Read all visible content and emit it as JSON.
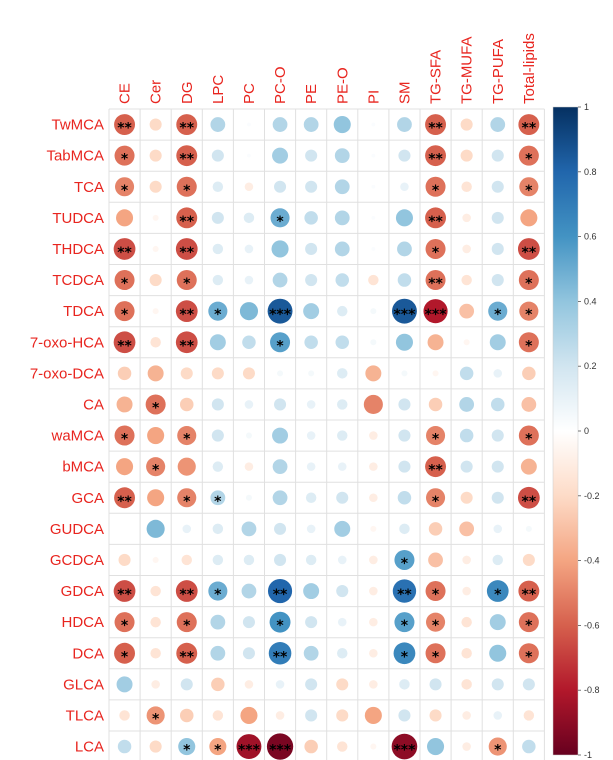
{
  "colors": {
    "label": "#e8251f",
    "grid": "#e0e0e0",
    "star": "#000000",
    "colorbar_stops": [
      "#67001f",
      "#b2182b",
      "#d6604d",
      "#f4a582",
      "#fddbc7",
      "#ffffff",
      "#d1e5f0",
      "#92c5de",
      "#4393c3",
      "#2166ac",
      "#053061"
    ]
  },
  "chart_data": {
    "type": "heatmap",
    "columns": [
      "CE",
      "Cer",
      "DG",
      "LPC",
      "PC",
      "PC-O",
      "PE",
      "PE-O",
      "PI",
      "SM",
      "TG-SFA",
      "TG-MUFA",
      "TG-PUFA",
      "Total-lipids"
    ],
    "rows": [
      "TwMCA",
      "TabMCA",
      "TCA",
      "TUDCA",
      "THDCA",
      "TCDCA",
      "TDCA",
      "7-oxo-HCA",
      "7-oxo-DCA",
      "CA",
      "waMCA",
      "bMCA",
      "GCA",
      "GUDCA",
      "GCDCA",
      "GDCA",
      "HDCA",
      "DCA",
      "GLCA",
      "TLCA",
      "LCA"
    ],
    "values": [
      [
        -0.6,
        -0.2,
        -0.6,
        0.3,
        0.02,
        0.3,
        0.3,
        0.4,
        0.02,
        0.3,
        -0.6,
        -0.2,
        0.3,
        -0.6
      ],
      [
        -0.55,
        -0.2,
        -0.6,
        0.2,
        0.02,
        0.35,
        0.2,
        0.3,
        0.02,
        0.2,
        -0.6,
        -0.2,
        0.2,
        -0.55
      ],
      [
        -0.5,
        -0.2,
        -0.55,
        0.15,
        -0.1,
        0.2,
        0.2,
        0.3,
        0.02,
        0.1,
        -0.55,
        -0.15,
        0.2,
        -0.5
      ],
      [
        -0.4,
        -0.05,
        -0.6,
        0.2,
        0.15,
        0.5,
        0.25,
        0.3,
        0.02,
        0.4,
        -0.6,
        -0.1,
        0.2,
        -0.4
      ],
      [
        -0.65,
        -0.05,
        -0.65,
        0.15,
        0.1,
        0.4,
        0.2,
        0.3,
        0.02,
        0.3,
        -0.55,
        -0.1,
        0.2,
        -0.65
      ],
      [
        -0.55,
        -0.2,
        -0.55,
        0.15,
        0.1,
        0.3,
        0.2,
        0.25,
        -0.15,
        0.25,
        -0.55,
        -0.15,
        0.2,
        -0.55
      ],
      [
        -0.55,
        -0.05,
        -0.65,
        0.5,
        0.45,
        0.85,
        0.35,
        0.15,
        0.05,
        0.85,
        -0.8,
        -0.3,
        0.5,
        -0.5
      ],
      [
        -0.65,
        -0.15,
        -0.65,
        0.35,
        0.25,
        0.55,
        0.25,
        0.25,
        0.05,
        0.4,
        -0.35,
        -0.05,
        0.35,
        -0.55
      ],
      [
        -0.25,
        -0.35,
        -0.2,
        -0.2,
        -0.2,
        0.05,
        0.05,
        0.15,
        -0.35,
        0.05,
        -0.05,
        0.25,
        0.1,
        -0.25
      ],
      [
        -0.35,
        -0.55,
        -0.25,
        0.2,
        0.1,
        0.2,
        0.1,
        0.15,
        -0.5,
        0.2,
        -0.25,
        0.3,
        0.25,
        -0.3
      ],
      [
        -0.55,
        -0.4,
        -0.5,
        0.2,
        0.05,
        0.35,
        0.1,
        0.15,
        -0.1,
        0.2,
        -0.5,
        0.25,
        0.2,
        -0.55
      ],
      [
        -0.4,
        -0.5,
        -0.45,
        0.15,
        -0.1,
        0.3,
        0.1,
        0.1,
        -0.1,
        0.2,
        -0.6,
        0.2,
        0.2,
        -0.35
      ],
      [
        -0.6,
        -0.4,
        -0.5,
        0.3,
        0.05,
        0.3,
        0.15,
        0.2,
        -0.1,
        0.25,
        -0.5,
        -0.2,
        0.2,
        -0.65
      ],
      [
        0.0,
        0.45,
        0.1,
        0.15,
        0.3,
        0.2,
        0.1,
        0.35,
        -0.05,
        0.15,
        -0.25,
        -0.3,
        0.1,
        0.05
      ],
      [
        -0.2,
        -0.05,
        -0.15,
        0.15,
        0.15,
        0.2,
        0.15,
        0.1,
        -0.1,
        0.55,
        -0.3,
        -0.1,
        0.15,
        -0.2
      ],
      [
        -0.65,
        -0.15,
        -0.65,
        0.5,
        0.3,
        0.8,
        0.35,
        0.2,
        -0.1,
        0.75,
        -0.55,
        -0.1,
        0.65,
        -0.6
      ],
      [
        -0.55,
        -0.15,
        -0.55,
        0.3,
        0.2,
        0.6,
        0.2,
        0.1,
        -0.1,
        0.55,
        -0.5,
        -0.15,
        0.35,
        -0.55
      ],
      [
        -0.6,
        -0.15,
        -0.6,
        0.3,
        0.2,
        0.7,
        0.3,
        0.15,
        -0.1,
        0.65,
        -0.55,
        -0.15,
        0.4,
        -0.55
      ],
      [
        0.35,
        -0.1,
        0.2,
        -0.25,
        -0.1,
        0.1,
        0.2,
        -0.2,
        -0.1,
        0.15,
        0.2,
        -0.15,
        0.2,
        0.2
      ],
      [
        -0.15,
        -0.45,
        -0.25,
        -0.15,
        -0.4,
        -0.1,
        0.2,
        -0.2,
        -0.4,
        0.2,
        -0.2,
        -0.1,
        0.1,
        -0.15
      ],
      [
        0.25,
        -0.2,
        0.4,
        -0.4,
        -0.85,
        -0.95,
        -0.25,
        -0.15,
        -0.05,
        -0.9,
        0.4,
        -0.1,
        -0.45,
        0.25
      ]
    ],
    "significance": [
      [
        "**",
        "",
        "**",
        "",
        "",
        "",
        "",
        "",
        "",
        "",
        "**",
        "",
        "",
        "**"
      ],
      [
        "*",
        "",
        "**",
        "",
        "",
        "",
        "",
        "",
        "",
        "",
        "**",
        "",
        "",
        "*"
      ],
      [
        "*",
        "",
        "*",
        "",
        "",
        "",
        "",
        "",
        "",
        "",
        "*",
        "",
        "",
        "*"
      ],
      [
        "",
        "",
        "**",
        "",
        "",
        "*",
        "",
        "",
        "",
        "",
        "**",
        "",
        "",
        ""
      ],
      [
        "**",
        "",
        "**",
        "",
        "",
        "",
        "",
        "",
        "",
        "",
        "*",
        "",
        "",
        "**"
      ],
      [
        "*",
        "",
        "*",
        "",
        "",
        "",
        "",
        "",
        "",
        "",
        "**",
        "",
        "",
        "*"
      ],
      [
        "*",
        "",
        "**",
        "*",
        "",
        "***",
        "",
        "",
        "",
        "***",
        "***",
        "",
        "*",
        "*"
      ],
      [
        "**",
        "",
        "**",
        "",
        "",
        "*",
        "",
        "",
        "",
        "",
        "",
        "",
        "",
        "*"
      ],
      [
        "",
        "",
        "",
        "",
        "",
        "",
        "",
        "",
        "",
        "",
        "",
        "",
        "",
        ""
      ],
      [
        "",
        "*",
        "",
        "",
        "",
        "",
        "",
        "",
        "",
        "",
        "",
        "",
        "",
        ""
      ],
      [
        "*",
        "",
        "*",
        "",
        "",
        "",
        "",
        "",
        "",
        "",
        "*",
        "",
        "",
        "*"
      ],
      [
        "",
        "*",
        "",
        "",
        "",
        "",
        "",
        "",
        "",
        "",
        "**",
        "",
        "",
        ""
      ],
      [
        "**",
        "",
        "*",
        "*",
        "",
        "",
        "",
        "",
        "",
        "",
        "*",
        "",
        "",
        "**"
      ],
      [
        "",
        "",
        "",
        "",
        "",
        "",
        "",
        "",
        "",
        "",
        "",
        "",
        "",
        ""
      ],
      [
        "",
        "",
        "",
        "",
        "",
        "",
        "",
        "",
        "",
        "*",
        "",
        "",
        "",
        ""
      ],
      [
        "**",
        "",
        "**",
        "*",
        "",
        "**",
        "",
        "",
        "",
        "**",
        "*",
        "",
        "*",
        "**"
      ],
      [
        "*",
        "",
        "*",
        "",
        "",
        "*",
        "",
        "",
        "",
        "*",
        "*",
        "",
        "",
        "*"
      ],
      [
        "*",
        "",
        "**",
        "",
        "",
        "**",
        "",
        "",
        "",
        "*",
        "*",
        "",
        "",
        "*"
      ],
      [
        "",
        "",
        "",
        "",
        "",
        "",
        "",
        "",
        "",
        "",
        "",
        "",
        "",
        ""
      ],
      [
        "",
        "*",
        "",
        "",
        "",
        "",
        "",
        "",
        "",
        "",
        "",
        "",
        "",
        ""
      ],
      [
        "",
        "",
        "*",
        "*",
        "***",
        "***",
        "",
        "",
        "",
        "***",
        "",
        "",
        "*",
        ""
      ]
    ],
    "colorbar": {
      "range": [
        -1,
        1
      ],
      "ticks": [
        "1",
        "0.8",
        "0.6",
        "0.4",
        "0.2",
        "0",
        "-0.2",
        "-0.4",
        "-0.6",
        "-0.8",
        "-1"
      ]
    },
    "title": "",
    "xlabel": "",
    "ylabel": "",
    "grid": true
  }
}
